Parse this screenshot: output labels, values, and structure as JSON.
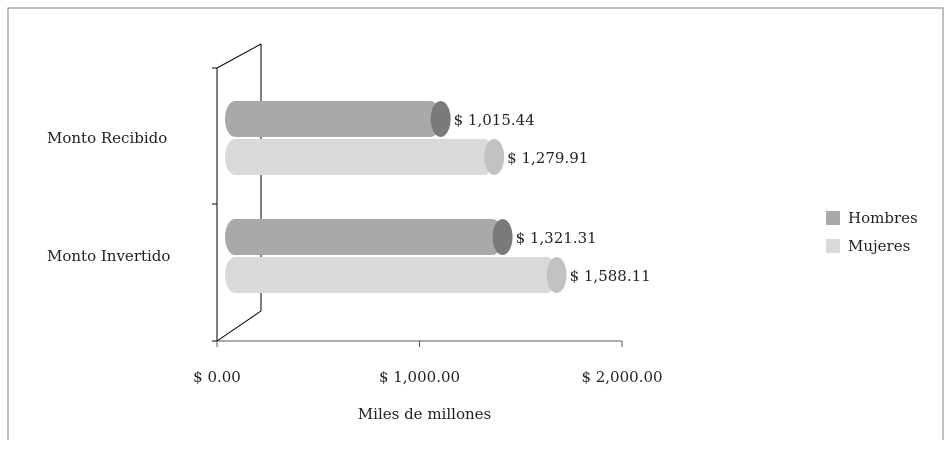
{
  "chart_data": {
    "type": "bar",
    "orientation": "horizontal",
    "style": "3d-cylinder",
    "categories": [
      "Monto Recibido",
      "Monto Invertido"
    ],
    "series": [
      {
        "name": "Hombres",
        "values": [
          1015.44,
          1321.31
        ],
        "labels": [
          "$ 1,015.44",
          "$ 1,321.31"
        ]
      },
      {
        "name": "Mujeres",
        "values": [
          1279.91,
          1588.11
        ],
        "labels": [
          "$ 1,279.91",
          "$ 1,588.11"
        ]
      }
    ],
    "xlabel": "Miles de millones",
    "xlim": [
      0,
      2000
    ],
    "x_ticks": [
      0,
      1000,
      2000
    ],
    "x_tick_labels": [
      "$ 0.00",
      "$ 1,000.00",
      "$ 2,000.00"
    ],
    "legend_position": "right",
    "grid": false
  },
  "colors": {
    "Hombres": "#a9a9a9",
    "Hombres_cap": "#7a7a7a",
    "Mujeres": "#d9d9d9",
    "Mujeres_cap": "#c2c2c2",
    "frame": "#808080",
    "axis": "#595959"
  }
}
